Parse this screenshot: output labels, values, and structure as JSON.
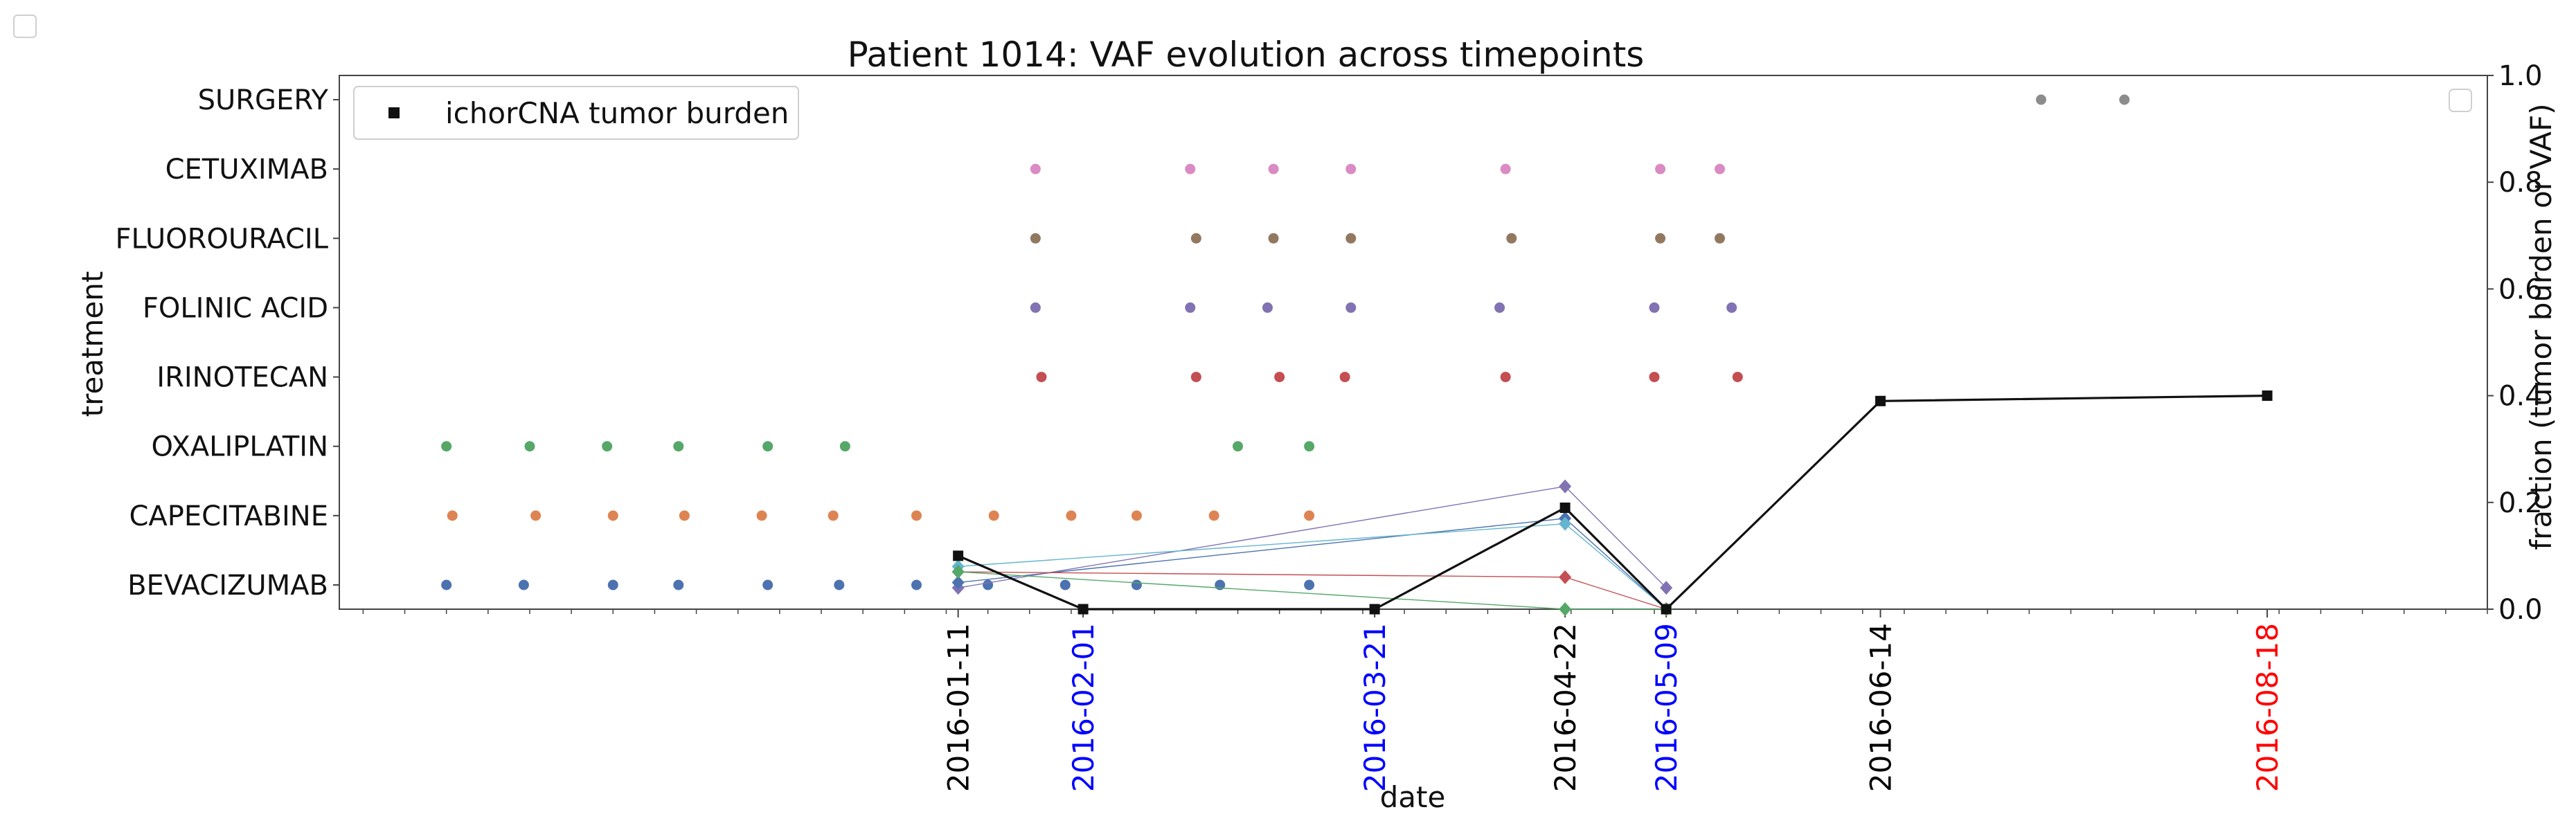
{
  "chart_data": {
    "type": "scatter",
    "title": "Patient 1014: VAF evolution across timepoints",
    "xlabel": "date",
    "ylabel_left": "treatment",
    "ylabel_right": "fraction (tumor burden or VAF)",
    "right_ylim": [
      0,
      1
    ],
    "right_yticks": [
      "0.0",
      "0.2",
      "0.4",
      "0.6",
      "0.8",
      "1.0"
    ],
    "x_range": [
      "2015-09-29",
      "2016-09-24"
    ],
    "timepoints": [
      {
        "date": "2016-01-11",
        "color": "#000000"
      },
      {
        "date": "2016-02-01",
        "color": "#0000ff"
      },
      {
        "date": "2016-03-21",
        "color": "#0000ff"
      },
      {
        "date": "2016-04-22",
        "color": "#000000"
      },
      {
        "date": "2016-05-09",
        "color": "#0000ff"
      },
      {
        "date": "2016-06-14",
        "color": "#000000"
      },
      {
        "date": "2016-08-18",
        "color": "#ff0000"
      }
    ],
    "treatments": [
      {
        "name": "SURGERY",
        "color": "#8c8c8c",
        "dates": [
          "2016-07-11",
          "2016-07-25"
        ]
      },
      {
        "name": "CETUXIMAB",
        "color": "#da8bc3",
        "dates": [
          "2016-01-24",
          "2016-02-19",
          "2016-03-04",
          "2016-03-17",
          "2016-04-12",
          "2016-05-08",
          "2016-05-18"
        ]
      },
      {
        "name": "FLUOROURACIL",
        "color": "#937860",
        "dates": [
          "2016-01-24",
          "2016-02-20",
          "2016-03-04",
          "2016-03-17",
          "2016-04-13",
          "2016-05-08",
          "2016-05-18"
        ]
      },
      {
        "name": "FOLINIC ACID",
        "color": "#8172b3",
        "dates": [
          "2016-01-24",
          "2016-02-19",
          "2016-03-03",
          "2016-03-17",
          "2016-04-11",
          "2016-05-07",
          "2016-05-20"
        ]
      },
      {
        "name": "IRINOTECAN",
        "color": "#c44e52",
        "dates": [
          "2016-01-25",
          "2016-02-20",
          "2016-03-05",
          "2016-03-16",
          "2016-04-12",
          "2016-05-07",
          "2016-05-21"
        ]
      },
      {
        "name": "OXALIPLATIN",
        "color": "#55a868",
        "dates": [
          "2015-10-17",
          "2015-10-31",
          "2015-11-13",
          "2015-11-25",
          "2015-12-10",
          "2015-12-23",
          "2016-02-27",
          "2016-03-10"
        ]
      },
      {
        "name": "CAPECITABINE",
        "color": "#dd8452",
        "dates": [
          "2015-10-18",
          "2015-11-01",
          "2015-11-14",
          "2015-11-26",
          "2015-12-09",
          "2015-12-21",
          "2016-01-04",
          "2016-01-17",
          "2016-01-30",
          "2016-02-10",
          "2016-02-23",
          "2016-03-10"
        ]
      },
      {
        "name": "BEVACIZUMAB",
        "color": "#4c72b0",
        "dates": [
          "2015-10-17",
          "2015-10-30",
          "2015-11-14",
          "2015-11-25",
          "2015-12-10",
          "2015-12-22",
          "2016-01-04",
          "2016-01-16",
          "2016-01-29",
          "2016-02-10",
          "2016-02-24",
          "2016-03-10"
        ]
      }
    ],
    "series": [
      {
        "name": "ichorCNA tumor burden",
        "color": "#111111",
        "marker": "square",
        "linewidth": 3.2,
        "points": [
          [
            "2016-01-11",
            0.1
          ],
          [
            "2016-02-01",
            0.0
          ],
          [
            "2016-03-21",
            0.0
          ],
          [
            "2016-04-22",
            0.19
          ],
          [
            "2016-05-09",
            0.0
          ],
          [
            "2016-06-14",
            0.39
          ],
          [
            "2016-08-18",
            0.4
          ]
        ]
      },
      {
        "color": "#8172b3",
        "marker": "diamond",
        "linewidth": 1.4,
        "points": [
          [
            "2016-01-11",
            0.04
          ],
          [
            "2016-04-22",
            0.23
          ],
          [
            "2016-05-09",
            0.04
          ]
        ]
      },
      {
        "color": "#4c72b0",
        "marker": "diamond",
        "linewidth": 1.4,
        "points": [
          [
            "2016-01-11",
            0.05
          ],
          [
            "2016-04-22",
            0.17
          ],
          [
            "2016-05-09",
            0.0
          ]
        ]
      },
      {
        "color": "#64b5cd",
        "marker": "diamond",
        "linewidth": 1.4,
        "points": [
          [
            "2016-01-11",
            0.08
          ],
          [
            "2016-04-22",
            0.16
          ],
          [
            "2016-05-09",
            0.0
          ]
        ]
      },
      {
        "color": "#c44e52",
        "marker": "diamond",
        "linewidth": 1.4,
        "points": [
          [
            "2016-01-11",
            0.07
          ],
          [
            "2016-04-22",
            0.06
          ],
          [
            "2016-05-09",
            0.0
          ]
        ]
      },
      {
        "color": "#55a868",
        "marker": "diamond",
        "linewidth": 1.4,
        "points": [
          [
            "2016-01-11",
            0.07
          ],
          [
            "2016-04-22",
            0.0
          ],
          [
            "2016-05-09",
            0.0
          ]
        ]
      }
    ],
    "legend": {
      "placement": "top-left",
      "entries": [
        "ichorCNA tumor burden"
      ]
    }
  }
}
